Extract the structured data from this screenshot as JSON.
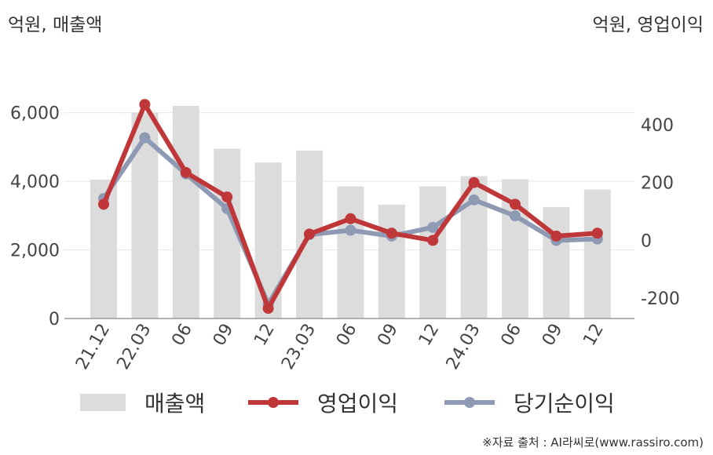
{
  "chart_data": {
    "type": "bar+line",
    "categories": [
      "21.12",
      "22.03",
      "06",
      "09",
      "12",
      "23.03",
      "06",
      "09",
      "12",
      "24.03",
      "06",
      "09",
      "12"
    ],
    "series": [
      {
        "name": "매출액",
        "type": "bar",
        "axis": "left",
        "color": "#dcdcdc",
        "values": [
          4050,
          6000,
          6200,
          4950,
          4550,
          4900,
          3850,
          3320,
          3850,
          4150,
          4060,
          3250,
          3760
        ]
      },
      {
        "name": "영업이익",
        "type": "line",
        "axis": "right",
        "color": "#c0373a",
        "values": [
          125,
          470,
          235,
          150,
          -235,
          22,
          75,
          25,
          0,
          200,
          125,
          15,
          25
        ]
      },
      {
        "name": "당기순이익",
        "type": "line",
        "axis": "right",
        "color": "#8e9ab3",
        "values": [
          145,
          355,
          230,
          110,
          -220,
          20,
          35,
          15,
          45,
          140,
          85,
          0,
          5
        ]
      }
    ],
    "left_axis": {
      "label": "억원, 매출액",
      "ylim": [
        0,
        7000
      ],
      "ticks": [
        0,
        2000,
        4000,
        6000
      ],
      "tick_labels": [
        "0",
        "2,000",
        "4,000",
        "6,000"
      ]
    },
    "right_axis": {
      "label": "억원, 영업이익",
      "ylim": [
        -270,
        560
      ],
      "ticks": [
        -200,
        0,
        200,
        400
      ],
      "tick_labels": [
        "-200",
        "0",
        "200",
        "400"
      ]
    },
    "grid": true,
    "legend_position": "bottom"
  },
  "source": "※자료 출처 : AI라씨로(www.rassiro.com)"
}
